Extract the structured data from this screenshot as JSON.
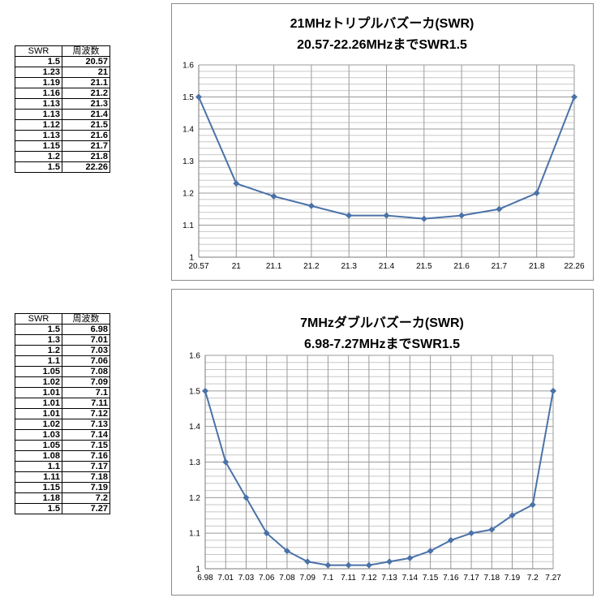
{
  "tables": [
    {
      "headers": [
        "SWR",
        "周波数"
      ],
      "rows": [
        [
          "1.5",
          "20.57"
        ],
        [
          "1.23",
          "21"
        ],
        [
          "1.19",
          "21.1"
        ],
        [
          "1.16",
          "21.2"
        ],
        [
          "1.13",
          "21.3"
        ],
        [
          "1.13",
          "21.4"
        ],
        [
          "1.12",
          "21.5"
        ],
        [
          "1.13",
          "21.6"
        ],
        [
          "1.15",
          "21.7"
        ],
        [
          "1.2",
          "21.8"
        ],
        [
          "1.5",
          "22.26"
        ]
      ]
    },
    {
      "headers": [
        "SWR",
        "周波数"
      ],
      "rows": [
        [
          "1.5",
          "6.98"
        ],
        [
          "1.3",
          "7.01"
        ],
        [
          "1.2",
          "7.03"
        ],
        [
          "1.1",
          "7.06"
        ],
        [
          "1.05",
          "7.08"
        ],
        [
          "1.02",
          "7.09"
        ],
        [
          "1.01",
          "7.1"
        ],
        [
          "1.01",
          "7.11"
        ],
        [
          "1.01",
          "7.12"
        ],
        [
          "1.02",
          "7.13"
        ],
        [
          "1.03",
          "7.14"
        ],
        [
          "1.05",
          "7.15"
        ],
        [
          "1.08",
          "7.16"
        ],
        [
          "1.1",
          "7.17"
        ],
        [
          "1.11",
          "7.18"
        ],
        [
          "1.15",
          "7.19"
        ],
        [
          "1.18",
          "7.2"
        ],
        [
          "1.5",
          "7.27"
        ]
      ]
    }
  ],
  "chart_data": [
    {
      "type": "line",
      "title": "21MHzトリプルバズーカ(SWR)",
      "subtitle": "20.57-22.26MHzまでSWR1.5",
      "categories": [
        "20.57",
        "21",
        "21.1",
        "21.2",
        "21.3",
        "21.4",
        "21.5",
        "21.6",
        "21.7",
        "21.8",
        "22.26"
      ],
      "series": [
        {
          "values": [
            1.5,
            1.23,
            1.19,
            1.16,
            1.13,
            1.13,
            1.12,
            1.13,
            1.15,
            1.2,
            1.5
          ]
        }
      ],
      "ylim": [
        1,
        1.6
      ],
      "yticks": [
        "1",
        "1.1",
        "1.2",
        "1.3",
        "1.4",
        "1.5",
        "1.6"
      ],
      "grid": true,
      "color": "#4a72a8"
    },
    {
      "type": "line",
      "title": "7MHzダブルバズーカ(SWR)",
      "subtitle": "6.98-7.27MHzまでSWR1.5",
      "categories": [
        "6.98",
        "7.01",
        "7.03",
        "7.06",
        "7.08",
        "7.09",
        "7.1",
        "7.11",
        "7.12",
        "7.13",
        "7.14",
        "7.15",
        "7.16",
        "7.17",
        "7.18",
        "7.19",
        "7.2",
        "7.27"
      ],
      "series": [
        {
          "values": [
            1.5,
            1.3,
            1.2,
            1.1,
            1.05,
            1.02,
            1.01,
            1.01,
            1.01,
            1.02,
            1.03,
            1.05,
            1.08,
            1.1,
            1.11,
            1.15,
            1.18,
            1.5
          ]
        }
      ],
      "ylim": [
        1,
        1.6
      ],
      "yticks": [
        "1",
        "1.1",
        "1.2",
        "1.3",
        "1.4",
        "1.5",
        "1.6"
      ],
      "grid": true,
      "color": "#4a72a8"
    }
  ]
}
